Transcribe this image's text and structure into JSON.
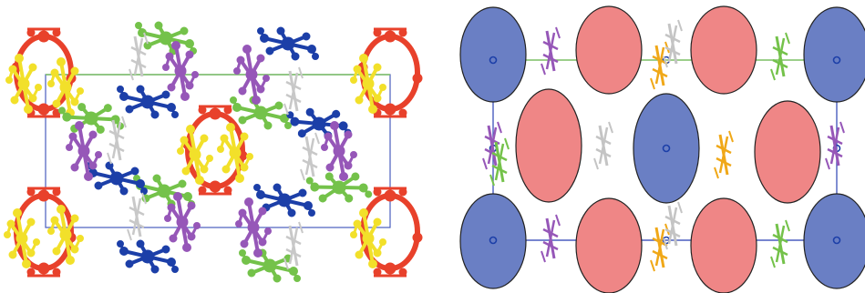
{
  "figure": {
    "panels": [
      {
        "id": "a",
        "content": "packing-ball-and-stick"
      },
      {
        "id": "b",
        "content": "ellipse-schematic"
      }
    ],
    "colors": {
      "red": "#e8412b",
      "yellow": "#f2e02a",
      "green": "#74c24a",
      "blue": "#1c3fa8",
      "purple": "#9657b8",
      "white": "#e6e6e6",
      "orange": "#f0a818",
      "cell_blue": "#4a5dbf",
      "cell_green": "#7bbf63",
      "ellipse_blue": "#6a7fc4",
      "ellipse_red": "#ef8686",
      "outline": "#222222"
    }
  }
}
